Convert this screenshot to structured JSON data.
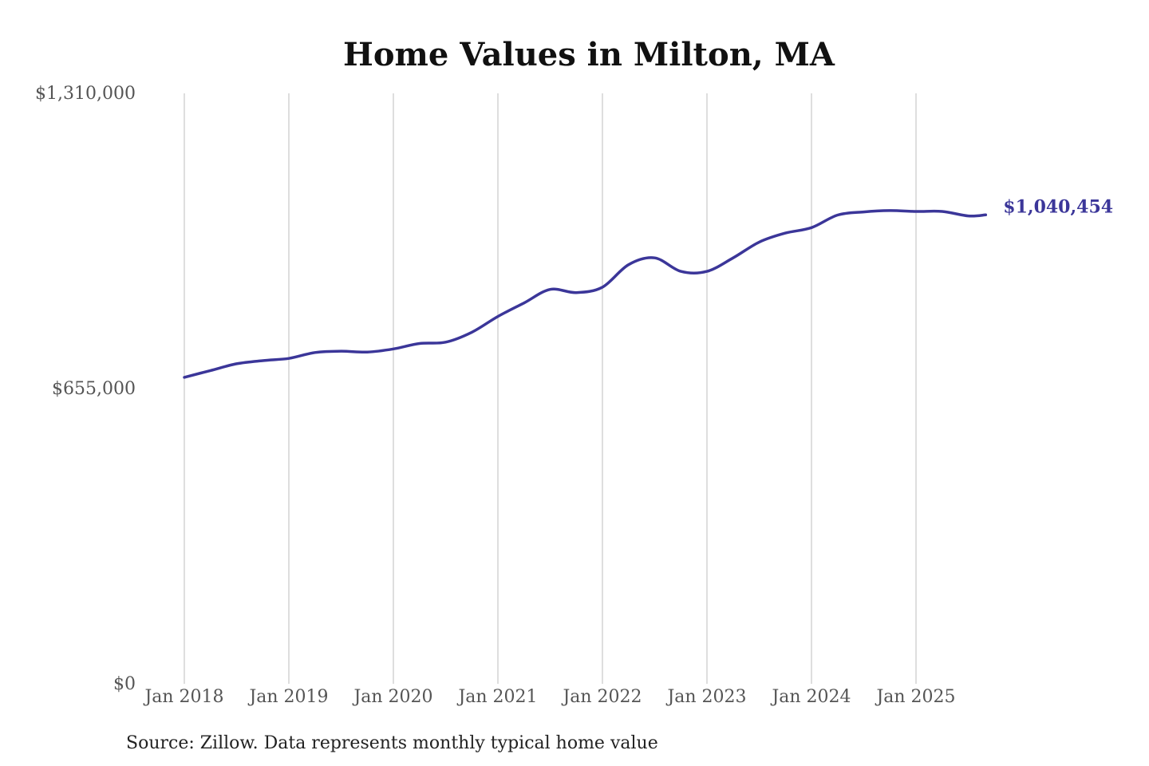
{
  "chart_data": {
    "type": "line",
    "title": "Home Values in Milton, MA",
    "xlabel": "",
    "ylabel": "",
    "ylim": [
      0,
      1310000
    ],
    "y_ticks": [
      {
        "value": 0,
        "label": "$0"
      },
      {
        "value": 655000,
        "label": "$655,000"
      },
      {
        "value": 1310000,
        "label": "$1,310,000"
      }
    ],
    "x_ticks": [
      {
        "value": "2018-01",
        "label": "Jan 2018"
      },
      {
        "value": "2019-01",
        "label": "Jan 2019"
      },
      {
        "value": "2020-01",
        "label": "Jan 2020"
      },
      {
        "value": "2021-01",
        "label": "Jan 2021"
      },
      {
        "value": "2022-01",
        "label": "Jan 2022"
      },
      {
        "value": "2023-01",
        "label": "Jan 2023"
      },
      {
        "value": "2024-01",
        "label": "Jan 2024"
      },
      {
        "value": "2025-01",
        "label": "Jan 2025"
      }
    ],
    "grid": {
      "vertical": true,
      "horizontal": false
    },
    "line_color": "#3b3699",
    "end_label": "$1,040,454",
    "series": [
      {
        "x": [
          "2018-01",
          "2018-04",
          "2018-07",
          "2018-10",
          "2019-01",
          "2019-04",
          "2019-07",
          "2019-10",
          "2020-01",
          "2020-04",
          "2020-07",
          "2020-10",
          "2021-01",
          "2021-04",
          "2021-07",
          "2021-10",
          "2022-01",
          "2022-04",
          "2022-07",
          "2022-10",
          "2023-01",
          "2023-04",
          "2023-07",
          "2023-10",
          "2024-01",
          "2024-04",
          "2024-07",
          "2024-10",
          "2025-01",
          "2025-04",
          "2025-07",
          "2025-09"
        ],
        "values": [
          680000,
          695000,
          710000,
          717000,
          722000,
          735000,
          738000,
          736000,
          743000,
          755000,
          758000,
          780000,
          815000,
          845000,
          875000,
          868000,
          880000,
          930000,
          945000,
          915000,
          915000,
          945000,
          980000,
          1000000,
          1012000,
          1040000,
          1047000,
          1050000,
          1048000,
          1048000,
          1038000,
          1040454
        ]
      }
    ]
  },
  "source_text": "Source: Zillow. Data represents monthly typical home value"
}
